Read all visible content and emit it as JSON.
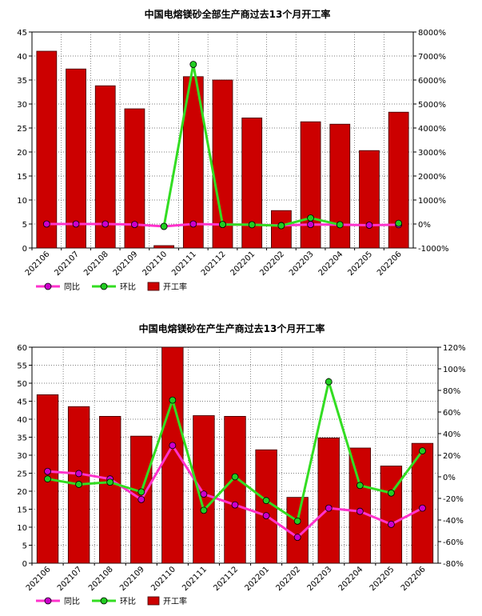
{
  "colors": {
    "bar": "#cc0000",
    "bar_stroke": "#3a0000",
    "yoy": "#ff33cc",
    "yoy_marker": "#cc00cc",
    "mom": "#33dd22",
    "mom_marker": "#22cc22",
    "grid": "#555555"
  },
  "chart_data": [
    {
      "type": "bar",
      "title": "中国电熔镁砂全部生产商过去13个月开工率",
      "categories": [
        "202106",
        "202107",
        "202108",
        "202109",
        "202110",
        "202111",
        "202112",
        "202201",
        "202202",
        "202203",
        "202204",
        "202205",
        "202206"
      ],
      "ylim": [
        0,
        45
      ],
      "y_ticks": [
        0,
        5,
        10,
        15,
        20,
        25,
        30,
        35,
        40,
        45
      ],
      "y2lim": [
        -1000,
        8000
      ],
      "y2_ticks": [
        -1000,
        0,
        1000,
        2000,
        3000,
        4000,
        5000,
        6000,
        7000,
        8000
      ],
      "y2_tick_labels": [
        "-1000%",
        "0%",
        "1000%",
        "2000%",
        "3000%",
        "4000%",
        "5000%",
        "6000%",
        "7000%",
        "8000%"
      ],
      "grid": true,
      "legend_position": "bottom-left",
      "series": [
        {
          "name": "同比",
          "type": "line",
          "axis": "right",
          "values": [
            0,
            0,
            0,
            -20,
            -100,
            0,
            -20,
            -30,
            -60,
            -20,
            -30,
            -50,
            -30
          ]
        },
        {
          "name": "环比",
          "type": "line",
          "axis": "right",
          "values": [
            null,
            null,
            null,
            null,
            -100,
            6650,
            -20,
            -30,
            -70,
            250,
            -30,
            null,
            30
          ]
        },
        {
          "name": "开工率",
          "type": "bar",
          "axis": "left",
          "values": [
            41.0,
            37.3,
            33.8,
            29.0,
            0.5,
            35.7,
            35.0,
            27.1,
            7.8,
            26.3,
            25.8,
            20.3,
            28.3
          ]
        }
      ]
    },
    {
      "type": "bar",
      "title": "中国电熔镁砂在产生产商过去13个月开工率",
      "categories": [
        "202106",
        "202107",
        "202108",
        "202109",
        "202110",
        "202111",
        "202112",
        "202201",
        "202202",
        "202203",
        "202204",
        "202205",
        "202206"
      ],
      "ylim": [
        0,
        60
      ],
      "y_ticks": [
        0,
        5,
        10,
        15,
        20,
        25,
        30,
        35,
        40,
        45,
        50,
        55,
        60
      ],
      "y2lim": [
        -80,
        120
      ],
      "y2_ticks": [
        -80,
        -60,
        -40,
        -20,
        0,
        20,
        40,
        60,
        80,
        100,
        120
      ],
      "y2_tick_labels": [
        "-80%",
        "-60%",
        "-40%",
        "-20%",
        "0%",
        "20%",
        "40%",
        "60%",
        "80%",
        "100%",
        "120%"
      ],
      "grid": true,
      "legend_position": "bottom-left",
      "series": [
        {
          "name": "同比",
          "type": "line",
          "axis": "right",
          "values": [
            5,
            3,
            -2,
            -21,
            29,
            -16,
            -26,
            -36,
            -56,
            -29,
            -32,
            -44,
            -29
          ]
        },
        {
          "name": "环比",
          "type": "line",
          "axis": "right",
          "values": [
            -2,
            -7,
            -5,
            -14,
            71,
            -31,
            0,
            -22,
            -41,
            88,
            -8,
            -15,
            24
          ]
        },
        {
          "name": "开工率",
          "type": "bar",
          "axis": "left",
          "values": [
            46.8,
            43.5,
            40.8,
            35.3,
            60.0,
            41.0,
            40.8,
            31.5,
            18.3,
            34.8,
            32.0,
            27.0,
            33.3
          ]
        }
      ]
    }
  ]
}
